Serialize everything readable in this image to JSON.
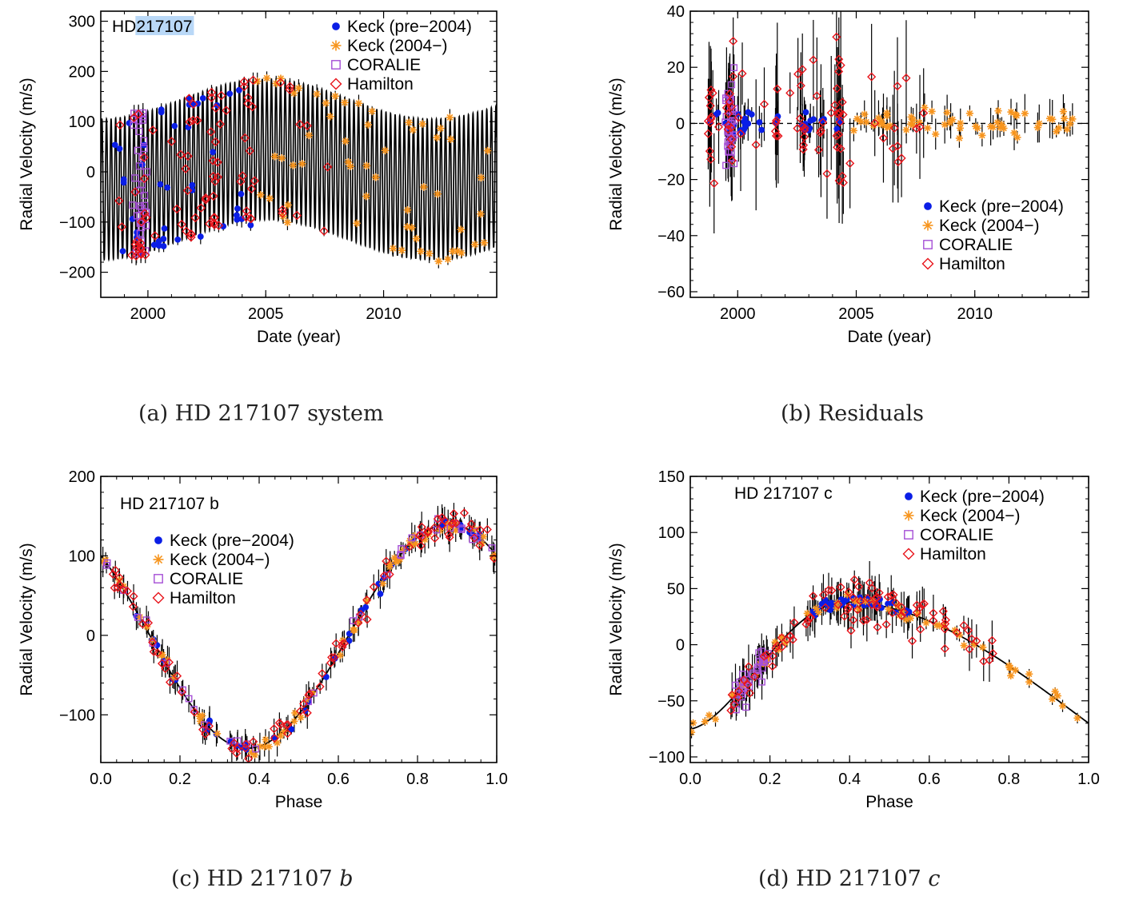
{
  "colors": {
    "keck_pre": "#0a1ee6",
    "keck_post": "#f7941d",
    "coralie": "#a64fd6",
    "hamilton": "#e8141b",
    "model": "#000000",
    "selection": "#b9d8f7"
  },
  "legend_entries": [
    "Keck (pre−2004)",
    "Keck (2004−)",
    "CORALIE",
    "Hamilton"
  ],
  "captions": {
    "a": {
      "prefix": "(a)",
      "text": "HD 217107 system"
    },
    "b": {
      "prefix": "(b)",
      "text": "Residuals"
    },
    "c": {
      "prefix": "(c)",
      "text": "HD 217107 ",
      "italic": "b"
    },
    "d": {
      "prefix": "(d)",
      "text": "HD 217107 ",
      "italic": "c"
    }
  },
  "chart_data": [
    {
      "id": "a",
      "type": "scatter",
      "title": "HD 217107",
      "title_highlighted_part": "217107",
      "xlabel": "Date (year)",
      "ylabel": "Radial Velocity (m/s)",
      "xlim": [
        1998,
        2014.8
      ],
      "ylim": [
        -250,
        320
      ],
      "xticks": [
        2000,
        2005,
        2010
      ],
      "yticks": [
        -200,
        -100,
        0,
        100,
        200,
        300
      ],
      "ytick_labels": [
        "−200",
        "−100",
        "0",
        "100",
        "200",
        "300"
      ],
      "legend_position": "top-right",
      "model": {
        "kind": "two-planet",
        "K_b": 140,
        "P_b_years": 0.1944,
        "K_c": 40,
        "P_c_years": 14.1,
        "phase_c_peak": 2005.0
      },
      "series": [
        {
          "name": "Keck (pre−2004)",
          "approx_points": 45,
          "time_range": [
            1998.7,
            2004.5
          ]
        },
        {
          "name": "Keck (2004−)",
          "approx_points": 60,
          "time_range": [
            2004.5,
            2014.5
          ]
        },
        {
          "name": "CORALIE",
          "approx_points": 35,
          "time_range": [
            1999.3,
            1999.9
          ]
        },
        {
          "name": "Hamilton",
          "approx_points": 90,
          "time_range": [
            1998.7,
            2008.0
          ]
        }
      ]
    },
    {
      "id": "b",
      "type": "scatter",
      "title": "",
      "xlabel": "Date (year)",
      "ylabel": "Radial Velocity (m/s)",
      "xlim": [
        1998,
        2014.8
      ],
      "ylim": [
        -62,
        40
      ],
      "xticks": [
        2000,
        2005,
        2010
      ],
      "yticks": [
        -60,
        -40,
        -20,
        0,
        20,
        40
      ],
      "ytick_labels": [
        "−60",
        "−40",
        "−20",
        "0",
        "20",
        "40"
      ],
      "reference_line": 0,
      "legend_position": "bottom-right",
      "series": [
        {
          "name": "Keck (pre−2004)",
          "approx_points": 40,
          "spread": 4
        },
        {
          "name": "Keck (2004−)",
          "approx_points": 60,
          "spread": 5
        },
        {
          "name": "CORALIE",
          "approx_points": 35,
          "spread": 15
        },
        {
          "name": "Hamilton",
          "approx_points": 90,
          "spread": 22
        }
      ]
    },
    {
      "id": "c",
      "type": "scatter",
      "title": "HD 217107 b",
      "xlabel": "Phase",
      "ylabel": "Radial Velocity (m/s)",
      "xlim": [
        0,
        1
      ],
      "ylim": [
        -160,
        200
      ],
      "xticks": [
        0.0,
        0.2,
        0.4,
        0.6,
        0.8,
        1.0
      ],
      "xtick_labels": [
        "0.0",
        "0.2",
        "0.4",
        "0.6",
        "0.8",
        "1.0"
      ],
      "yticks": [
        -100,
        0,
        100,
        200
      ],
      "ytick_labels": [
        "−100",
        "0",
        "100",
        "200"
      ],
      "legend_position": "middle-left",
      "model": {
        "kind": "phased-curve",
        "min_phase": 0.37,
        "min_value": -142,
        "max_phase": 0.88,
        "max_value": 140
      },
      "series": [
        {
          "name": "Keck (pre−2004)",
          "approx_points": 45
        },
        {
          "name": "Keck (2004−)",
          "approx_points": 60
        },
        {
          "name": "CORALIE",
          "approx_points": 35
        },
        {
          "name": "Hamilton",
          "approx_points": 90
        }
      ]
    },
    {
      "id": "d",
      "type": "scatter",
      "title": "HD 217107 c",
      "xlabel": "Phase",
      "ylabel": "Radial Velocity (m/s)",
      "xlim": [
        0,
        1
      ],
      "ylim": [
        -105,
        150
      ],
      "xticks": [
        0.0,
        0.2,
        0.4,
        0.6,
        0.8,
        1.0
      ],
      "xtick_labels": [
        "0.0",
        "0.2",
        "0.4",
        "0.6",
        "0.8",
        "1.0"
      ],
      "yticks": [
        -100,
        -50,
        0,
        50,
        100,
        150
      ],
      "ytick_labels": [
        "−100",
        "−50",
        "0",
        "50",
        "100",
        "150"
      ],
      "legend_position": "top-right",
      "model": {
        "kind": "phased-curve",
        "peak_phase": 0.39,
        "peak_value": 38,
        "value_at_0": -75,
        "value_at_1": -70
      },
      "series": [
        {
          "name": "Keck (pre−2004)",
          "approx_points": 45,
          "phase_range": [
            0.3,
            0.55
          ]
        },
        {
          "name": "Keck (2004−)",
          "approx_points": 60,
          "phase_range": [
            0.0,
            1.0
          ]
        },
        {
          "name": "CORALIE",
          "approx_points": 35,
          "phase_range": [
            0.11,
            0.2
          ]
        },
        {
          "name": "Hamilton",
          "approx_points": 90,
          "phase_range": [
            0.1,
            0.76
          ]
        }
      ]
    }
  ]
}
